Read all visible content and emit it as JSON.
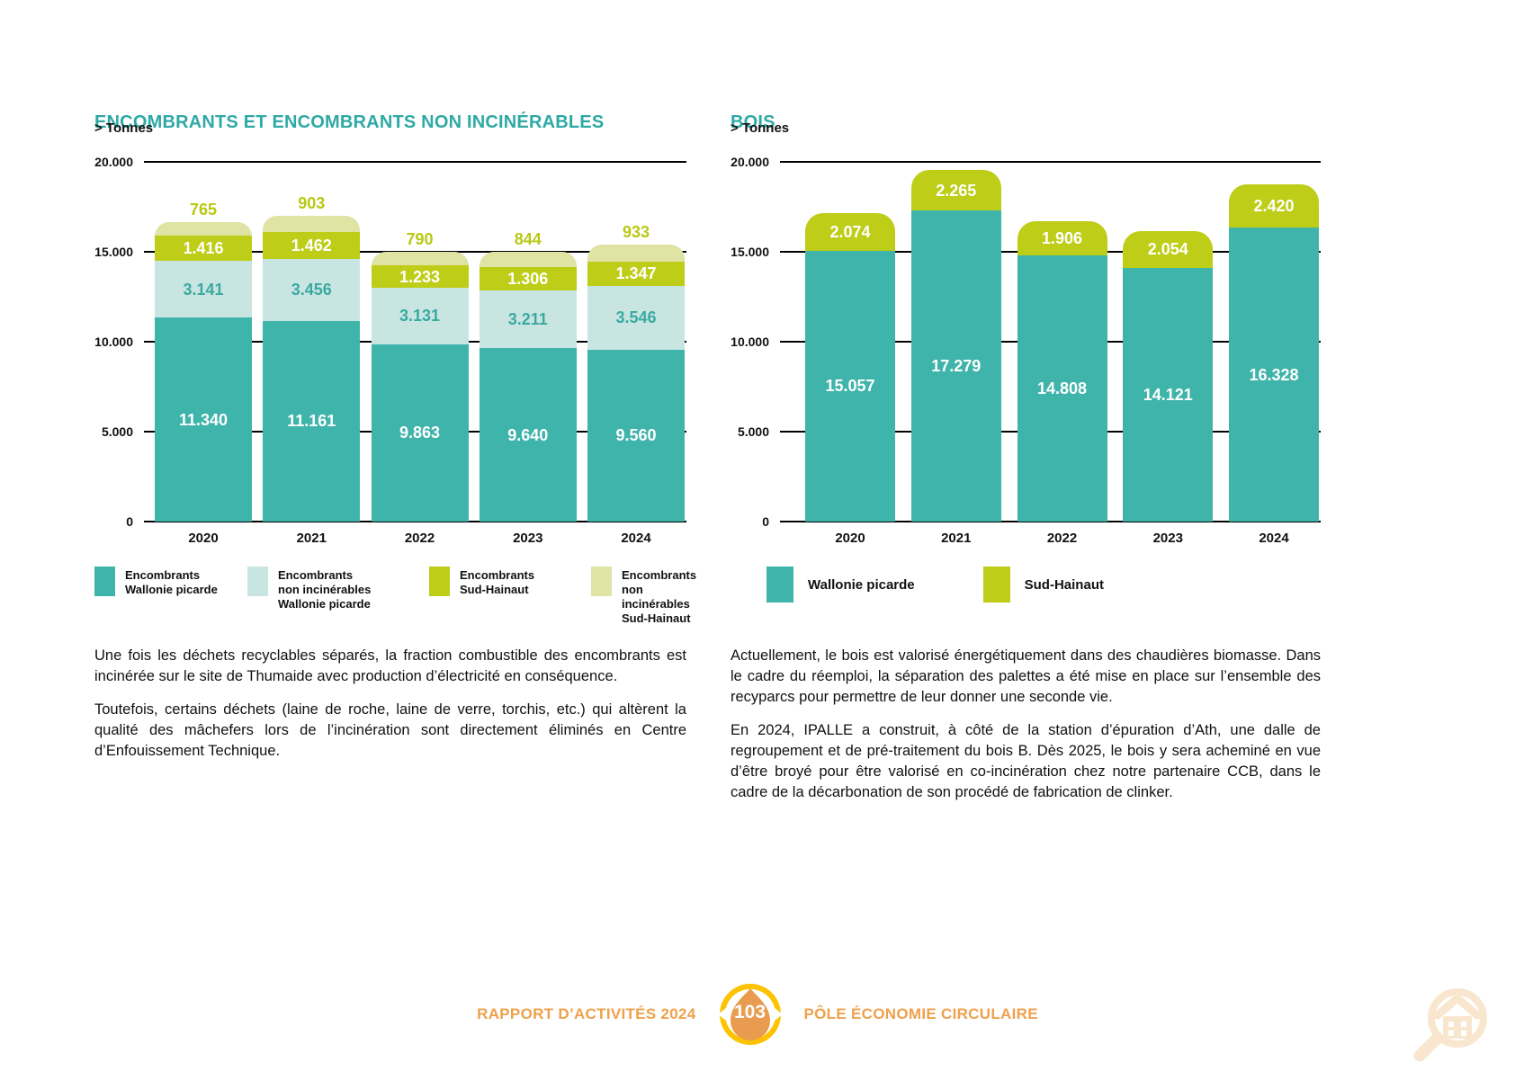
{
  "colors": {
    "teal": "#3FB4AA",
    "teal_light": "#C9E5E2",
    "green": "#BECD17",
    "green_light": "#DFE3A4",
    "title_teal": "#2FA9A5",
    "grid_black": "#000000",
    "footer_orange": "#EFA14B",
    "badge_yellow": "#FDC300",
    "badge_drop_orange": "#E99C4F",
    "corner_icon_peach": "#F9E6CE"
  },
  "left_section": {
    "title": "ENCOMBRANTS ET ENCOMBRANTS NON INCINÉRABLES",
    "unit_label": "> Tonnes",
    "legend": [
      {
        "color": "#3FB4AA",
        "lines": [
          "Encombrants",
          "Wallonie picarde"
        ]
      },
      {
        "color": "#C9E5E2",
        "lines": [
          "Encombrants",
          "non incinérables",
          "Wallonie picarde"
        ]
      },
      {
        "color": "#BECD17",
        "lines": [
          "Encombrants",
          "Sud-Hainaut"
        ]
      },
      {
        "color": "#DFE3A4",
        "lines": [
          "Encombrants",
          "non incinérables",
          "Sud-Hainaut"
        ]
      }
    ],
    "paragraphs": [
      "Une fois les déchets recyclables séparés, la fraction combustible des encombrants est incinérée sur le site de Thumaide avec production d’électricité en conséquence.",
      "Toutefois, certains déchets (laine de roche, laine de verre, torchis, etc.) qui altèrent la qualité des mâchefers lors de l’incinération sont directement éliminés en Centre d’Enfouissement Technique."
    ]
  },
  "right_section": {
    "title": "BOIS",
    "unit_label": "> Tonnes",
    "legend": [
      {
        "color": "#3FB4AA",
        "lines": [
          "Wallonie picarde"
        ]
      },
      {
        "color": "#BECD17",
        "lines": [
          "Sud-Hainaut"
        ]
      }
    ],
    "paragraphs": [
      "Actuellement, le bois est valorisé énergétiquement dans des chaudières biomasse. Dans le cadre du réemploi, la séparation des palettes a été mise en place sur l’ensemble des recyparcs pour permettre de leur donner une seconde vie.",
      "En 2024, IPALLE a construit, à côté de la station d’épuration d’Ath, une dalle de regroupement et de pré-traitement du bois B. Dès 2025, le bois y sera acheminé en vue d’être broyé pour être valorisé en co-incinération chez notre partenaire CCB, dans le cadre de la décarbonation de son procédé de fabrication de clinker."
    ]
  },
  "chart_data": [
    {
      "type": "bar",
      "stacked": true,
      "title": "ENCOMBRANTS ET ENCOMBRANTS NON INCINÉRABLES",
      "ylabel": "Tonnes",
      "categories": [
        "2020",
        "2021",
        "2022",
        "2023",
        "2024"
      ],
      "ylim": [
        0,
        20000
      ],
      "y_ticks": [
        "0",
        "5.000",
        "10.000",
        "15.000",
        "20.000"
      ],
      "grid": true,
      "legend_position": "bottom",
      "series": [
        {
          "name": "Encombrants Wallonie picarde",
          "color": "#3FB4AA",
          "label_color": "#FFFFFF",
          "label_position": "inside",
          "values": [
            11340,
            11161,
            9863,
            9640,
            9560
          ]
        },
        {
          "name": "Encombrants non incinérables Wallonie picarde",
          "color": "#C9E5E2",
          "label_color": "#3AAAA0",
          "label_position": "inside",
          "values": [
            3141,
            3456,
            3131,
            3211,
            3546
          ]
        },
        {
          "name": "Encombrants Sud-Hainaut",
          "color": "#BECD17",
          "label_color": "#FFFFFF",
          "label_position": "inside",
          "values": [
            1416,
            1462,
            1233,
            1306,
            1347
          ]
        },
        {
          "name": "Encombrants non incinérables Sud-Hainaut",
          "color": "#DFE3A4",
          "label_color": "#B9C813",
          "label_position": "above",
          "values": [
            765,
            903,
            790,
            844,
            933
          ]
        }
      ]
    },
    {
      "type": "bar",
      "stacked": true,
      "title": "BOIS",
      "ylabel": "Tonnes",
      "categories": [
        "2020",
        "2021",
        "2022",
        "2023",
        "2024"
      ],
      "ylim": [
        0,
        20000
      ],
      "y_ticks": [
        "0",
        "5.000",
        "10.000",
        "15.000",
        "20.000"
      ],
      "grid": true,
      "legend_position": "bottom",
      "series": [
        {
          "name": "Wallonie picarde",
          "color": "#3FB4AA",
          "label_color": "#FFFFFF",
          "label_position": "inside",
          "values": [
            15057,
            17279,
            14808,
            14121,
            16328
          ]
        },
        {
          "name": "Sud-Hainaut",
          "color": "#BECD17",
          "label_color": "#FFFFFF",
          "label_position": "inside",
          "values": [
            2074,
            2265,
            1906,
            2054,
            2420
          ]
        }
      ]
    }
  ],
  "footer": {
    "report_label": "RAPPORT D’ACTIVITÉS 2024",
    "page_number": "103",
    "section_label": "PÔLE ÉCONOMIE CIRCULAIRE"
  }
}
